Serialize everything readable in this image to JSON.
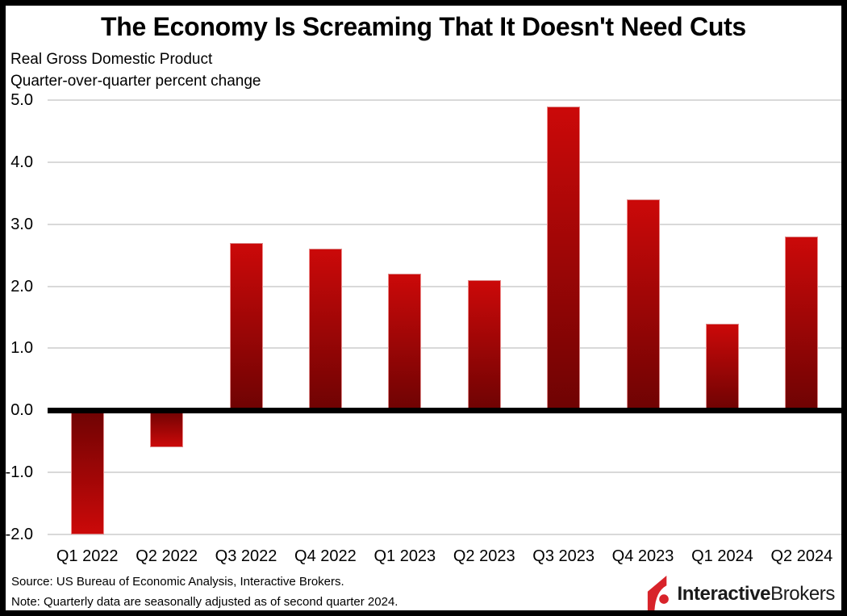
{
  "title": "The Economy Is Screaming That It Doesn't Need Cuts",
  "subtitle_line1": "Real Gross Domestic Product",
  "subtitle_line2": "Quarter-over-quarter percent change",
  "footer": {
    "source": "Source: US Bureau of Economic Analysis, Interactive Brokers.",
    "note": "Note: Quarterly data are seasonally adjusted as of second quarter 2024.",
    "logo": {
      "brand_bold": "Interactive",
      "brand_regular": "Brokers",
      "logo_red": "#d8232a"
    }
  },
  "chart_data": {
    "type": "bar",
    "title": "The Economy Is Screaming That It Doesn't Need Cuts",
    "subtitle": [
      "Real Gross Domestic Product",
      "Quarter-over-quarter percent change"
    ],
    "categories": [
      "Q1 2022",
      "Q2 2022",
      "Q3 2022",
      "Q4 2022",
      "Q1 2023",
      "Q2 2023",
      "Q3 2023",
      "Q4 2023",
      "Q1 2024",
      "Q2 2024"
    ],
    "values": [
      -2.0,
      -0.6,
      2.7,
      2.6,
      2.2,
      2.1,
      4.9,
      3.4,
      1.4,
      2.8
    ],
    "xlabel": "",
    "ylabel": "Quarter-over-quarter percent change",
    "ylim": [
      -2.0,
      5.0
    ],
    "y_ticks": [
      {
        "label": "5.0",
        "value": 5
      },
      {
        "label": "4.0",
        "value": 4
      },
      {
        "label": "3.0",
        "value": 3
      },
      {
        "label": "2.0",
        "value": 2
      },
      {
        "label": "1.0",
        "value": 1
      },
      {
        "label": "0.0",
        "value": 0
      },
      {
        "label": "-1.0",
        "value": -1
      },
      {
        "label": "-2.0",
        "value": -2
      }
    ],
    "grid": "horizontal",
    "legend": "none",
    "colors": {
      "bar_bright": "#cb0909",
      "bar_dark": "#6f0303",
      "gridline": "#d9d9d9",
      "zero_line": "#000000",
      "background": "#ffffff",
      "frame": "#000000"
    }
  }
}
